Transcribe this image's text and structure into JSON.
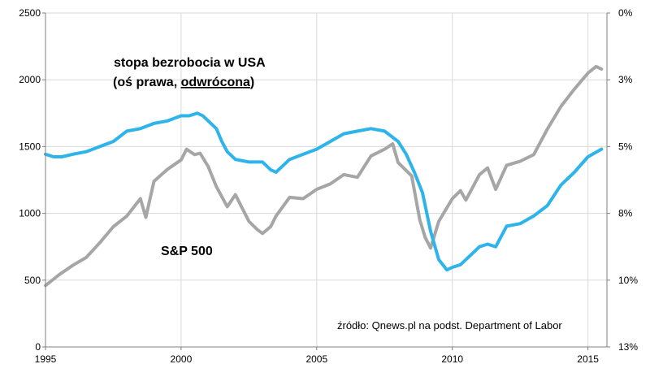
{
  "chart_data": {
    "type": "line",
    "title": "",
    "xlabel": "",
    "ylabel": "",
    "x_range": [
      1995,
      2015.7
    ],
    "x_ticks": [
      "1995",
      "2000",
      "2005",
      "2010",
      "2015"
    ],
    "y_left": {
      "range": [
        0,
        2500
      ],
      "ticks": [
        "0",
        "500",
        "1000",
        "1500",
        "2000",
        "2500"
      ]
    },
    "y_right": {
      "range": [
        0,
        13
      ],
      "inverted": true,
      "ticks": [
        "0%",
        "3%",
        "5%",
        "8%",
        "10%",
        "13%"
      ]
    },
    "grid": true,
    "annotations": {
      "unemployment_label_line1": "stopa bezrobocia w USA",
      "unemployment_label_line2_prefix": "(oś prawa, ",
      "unemployment_label_line2_underlined": "odwrócona",
      "unemployment_label_line2_suffix": ")",
      "sp500_label": "S&P 500",
      "source": "źródło: Qnews.pl na podst. Department of Labor"
    },
    "series": [
      {
        "name": "S&P 500",
        "axis": "left",
        "color": "#a6a6a6",
        "x": [
          1995.0,
          1995.5,
          1996.0,
          1996.5,
          1997.0,
          1997.5,
          1998.0,
          1998.5,
          1998.7,
          1999.0,
          1999.5,
          2000.0,
          2000.2,
          2000.5,
          2000.7,
          2001.0,
          2001.3,
          2001.7,
          2002.0,
          2002.5,
          2002.8,
          2003.0,
          2003.3,
          2003.5,
          2004.0,
          2004.5,
          2005.0,
          2005.5,
          2006.0,
          2006.5,
          2007.0,
          2007.5,
          2007.8,
          2008.0,
          2008.5,
          2008.8,
          2009.0,
          2009.2,
          2009.5,
          2010.0,
          2010.3,
          2010.5,
          2011.0,
          2011.3,
          2011.6,
          2012.0,
          2012.5,
          2013.0,
          2013.5,
          2014.0,
          2014.5,
          2015.0,
          2015.3,
          2015.5
        ],
        "values": [
          460,
          540,
          610,
          670,
          780,
          900,
          980,
          1110,
          970,
          1240,
          1330,
          1400,
          1480,
          1440,
          1450,
          1350,
          1200,
          1050,
          1140,
          940,
          880,
          850,
          900,
          980,
          1120,
          1110,
          1180,
          1220,
          1290,
          1270,
          1430,
          1480,
          1520,
          1380,
          1280,
          950,
          820,
          740,
          940,
          1110,
          1170,
          1100,
          1290,
          1340,
          1180,
          1360,
          1390,
          1440,
          1630,
          1800,
          1930,
          2050,
          2100,
          2080
        ]
      },
      {
        "name": "stopa bezrobocia w USA",
        "axis": "right",
        "color": "#2eb4ea",
        "x": [
          1995.0,
          1995.3,
          1995.6,
          1996.0,
          1996.5,
          1997.0,
          1997.5,
          1998.0,
          1998.5,
          1999.0,
          1999.5,
          2000.0,
          2000.3,
          2000.6,
          2000.8,
          2001.0,
          2001.3,
          2001.5,
          2001.7,
          2002.0,
          2002.5,
          2003.0,
          2003.3,
          2003.5,
          2004.0,
          2004.5,
          2005.0,
          2005.5,
          2006.0,
          2006.5,
          2007.0,
          2007.5,
          2008.0,
          2008.3,
          2008.6,
          2008.9,
          2009.2,
          2009.5,
          2009.8,
          2010.0,
          2010.3,
          2010.6,
          2011.0,
          2011.3,
          2011.6,
          2012.0,
          2012.5,
          2013.0,
          2013.5,
          2014.0,
          2014.5,
          2015.0,
          2015.5
        ],
        "values": [
          5.5,
          5.6,
          5.6,
          5.5,
          5.4,
          5.2,
          5.0,
          4.6,
          4.5,
          4.3,
          4.2,
          4.0,
          4.0,
          3.9,
          4.0,
          4.2,
          4.5,
          5.0,
          5.4,
          5.7,
          5.8,
          5.8,
          6.1,
          6.2,
          5.7,
          5.5,
          5.3,
          5.0,
          4.7,
          4.6,
          4.5,
          4.6,
          5.0,
          5.5,
          6.2,
          7.0,
          8.5,
          9.6,
          10.0,
          9.9,
          9.8,
          9.5,
          9.1,
          9.0,
          9.1,
          8.3,
          8.2,
          7.9,
          7.5,
          6.7,
          6.2,
          5.6,
          5.3
        ]
      }
    ]
  }
}
